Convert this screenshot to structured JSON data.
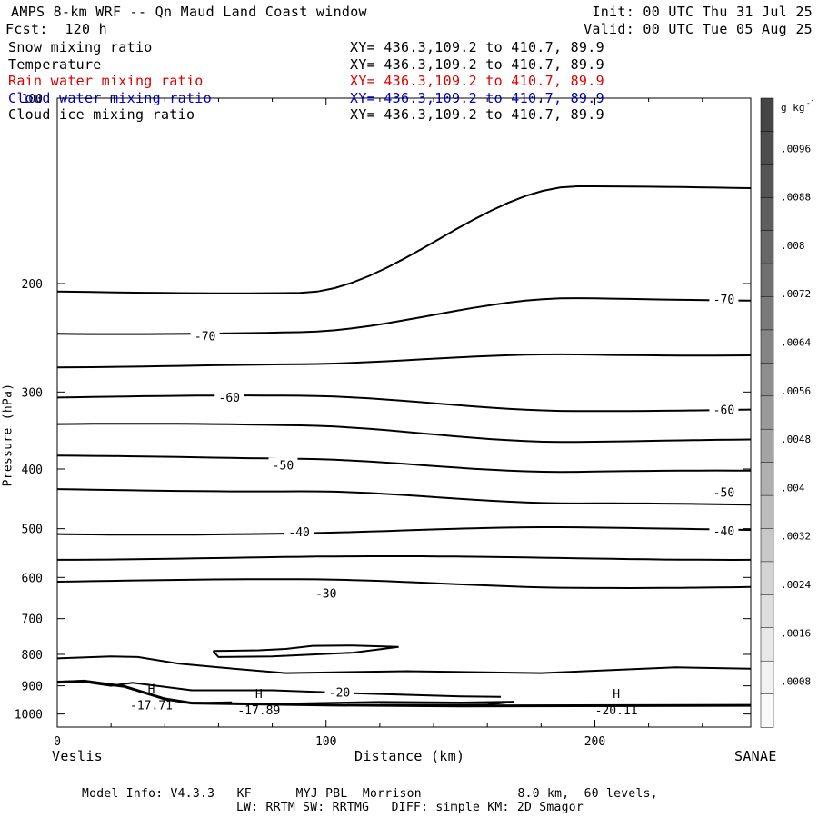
{
  "header": {
    "title": "AMPS 8-km WRF -- Qn Maud Land Coast window",
    "forecast": "Fcst:  120 h",
    "init": "Init: 00 UTC Thu 31 Jul 25",
    "valid": "Valid: 00 UTC Tue 05 Aug 25"
  },
  "fields": [
    {
      "name": "Snow mixing ratio",
      "xy": "XY= 436.3,109.2 to 410.7, 89.9",
      "color": "#000000"
    },
    {
      "name": "Temperature",
      "xy": "XY= 436.3,109.2 to 410.7, 89.9",
      "color": "#000000"
    },
    {
      "name": "Rain water mixing ratio",
      "xy": "XY= 436.3,109.2 to 410.7, 89.9",
      "color": "#e00000"
    },
    {
      "name": "Cloud water mixing ratio",
      "xy": "XY= 436.3,109.2 to 410.7, 89.9",
      "color": "#0000d0"
    },
    {
      "name": "Cloud ice mixing ratio",
      "xy": "XY= 436.3,109.2 to 410.7, 89.9",
      "color": "#000000"
    }
  ],
  "footer": {
    "line1": "Model Info: V4.3.3   KF      MYJ PBL  Morrison             8.0 km,  60 levels,",
    "line2": "LW: RRTM SW: RRTMG   DIFF: simple KM: 2D Smagor"
  },
  "colorbar": {
    "unit": "g kg",
    "unit_exp": "-1",
    "ticks": [
      ".0096",
      ".0088",
      ".008",
      ".0072",
      ".0064",
      ".0056",
      ".0048",
      ".004",
      ".0032",
      ".0024",
      ".0016",
      ".0008"
    ],
    "shades": [
      "#454545",
      "#4d4d4d",
      "#555555",
      "#5e5e5e",
      "#676767",
      "#707070",
      "#7a7a7a",
      "#848484",
      "#8e8e8e",
      "#999999",
      "#a4a4a4",
      "#b0b0b0",
      "#bcbcbc",
      "#c8c8c8",
      "#d4d4d4",
      "#dedede",
      "#e8e8e8",
      "#f2f2f2",
      "#fafafa"
    ]
  },
  "chart_data": {
    "type": "contour",
    "xlabel": "Distance (km)",
    "ylabel": "Pressure (hPa)",
    "xlim": [
      0,
      258
    ],
    "ylim": [
      1050,
      100
    ],
    "y_log": true,
    "x_ticks": [
      0,
      100,
      200
    ],
    "y_ticks": [
      100,
      200,
      300,
      400,
      500,
      600,
      700,
      800,
      900,
      1000
    ],
    "left_endpoint": "Veslis",
    "right_endpoint": "SANAE",
    "contour_labels": [
      {
        "text": "-70",
        "x": 55,
        "p": 243
      },
      {
        "text": "-70",
        "x": 248,
        "p": 212
      },
      {
        "text": "-60",
        "x": 64,
        "p": 306
      },
      {
        "text": "-60",
        "x": 248,
        "p": 320
      },
      {
        "text": "-50",
        "x": 84,
        "p": 394
      },
      {
        "text": "-50",
        "x": 248,
        "p": 436
      },
      {
        "text": "-40",
        "x": 90,
        "p": 506
      },
      {
        "text": "-40",
        "x": 248,
        "p": 504
      },
      {
        "text": "-30",
        "x": 100,
        "p": 636
      },
      {
        "text": "-20",
        "x": 105,
        "p": 922
      }
    ],
    "extrema": [
      {
        "symbol": "H",
        "value": "-17.71",
        "x": 35,
        "p": 950
      },
      {
        "symbol": "H",
        "value": "-17.89",
        "x": 75,
        "p": 967
      },
      {
        "symbol": "H",
        "value": "-20.11",
        "x": 208,
        "p": 967
      }
    ],
    "isotherms": [
      {
        "p_left": 206,
        "p_right": 140
      },
      {
        "p_left": 240,
        "p_right": 212
      },
      {
        "p_left": 272,
        "p_right": 260
      },
      {
        "p_left": 306,
        "p_right": 320
      },
      {
        "p_left": 340,
        "p_right": 360
      },
      {
        "p_left": 383,
        "p_right": 405
      },
      {
        "p_left": 432,
        "p_right": 458
      },
      {
        "p_left": 508,
        "p_right": 500
      },
      {
        "p_left": 558,
        "p_right": 558
      },
      {
        "p_left": 608,
        "p_right": 620
      }
    ]
  }
}
